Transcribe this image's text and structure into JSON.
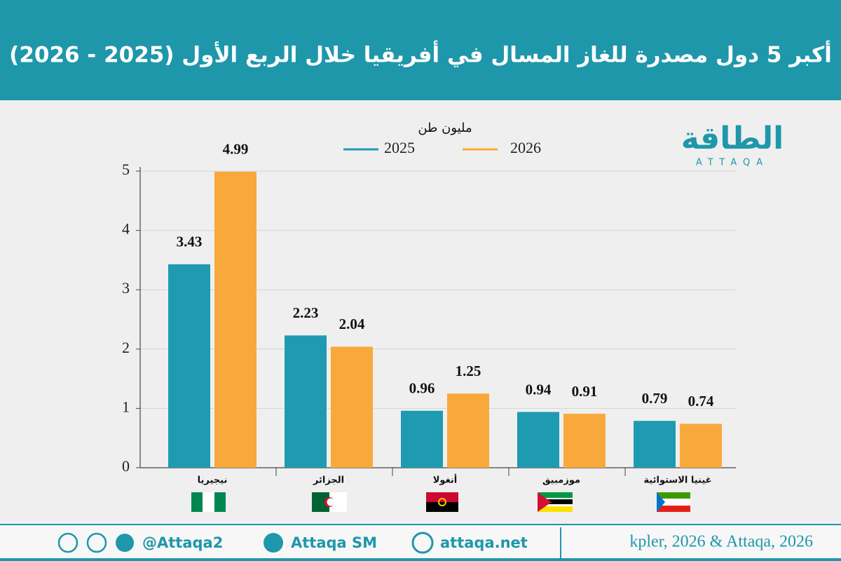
{
  "chart_data": {
    "type": "bar",
    "title": "أكبر 5 دول مصدرة للغاز المسال في أفريقيا خلال الربع الأول (2025 - 2026)",
    "unit": "مليون طن",
    "logo": {
      "name": "الطاقة",
      "latin": "ATTAQA"
    },
    "categories": [
      "نيجيريا",
      "الجزائر",
      "أنغولا",
      "موزمبيق",
      "غينيا الاستوائية"
    ],
    "series": [
      {
        "name": "2025",
        "color": "#1e9bb0",
        "values": [
          3.43,
          2.23,
          0.96,
          0.94,
          0.79
        ]
      },
      {
        "name": "2026",
        "color": "#f9a93b",
        "values": [
          4.99,
          2.04,
          1.25,
          0.91,
          0.74
        ]
      }
    ],
    "ylim": [
      0,
      5
    ],
    "yticks": [
      0,
      1,
      2,
      3,
      4,
      5
    ],
    "grid": true,
    "footer": {
      "handle": "@Attaqa2",
      "youtube": "Attaqa SM",
      "website": "attaqa.net",
      "source": "kpler, 2026 & Attaqa, 2026"
    }
  }
}
